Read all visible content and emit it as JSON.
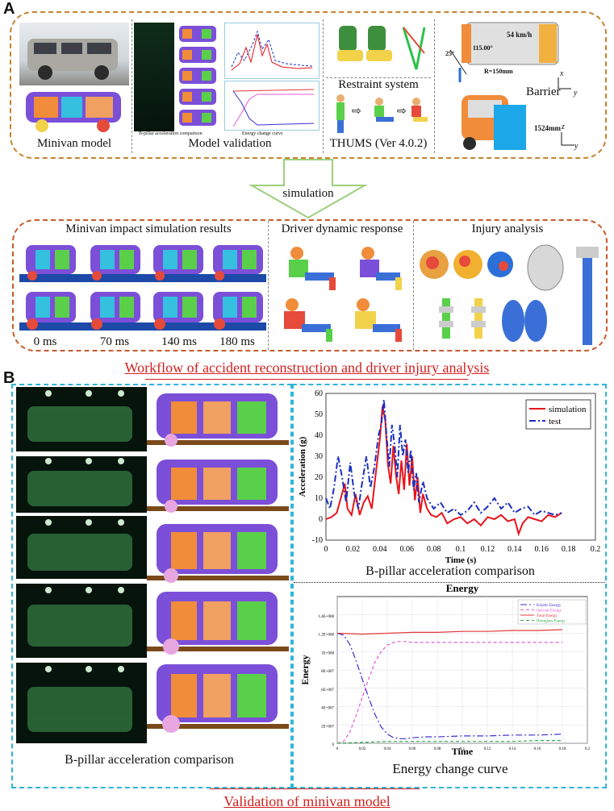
{
  "panelA": {
    "letter": "A",
    "minivan_caption": "Minivan model",
    "validation_caption": "Model validation",
    "thumb_bpillar": "B-pillar acceleration comparison",
    "thumb_energy": "Energy change curve",
    "restraint_caption": "Restraint system",
    "thums_caption": "THUMS (Ver 4.0.2)",
    "speed_label": "54 km/h",
    "angle_label": "25°",
    "angle2_label": "115.00°",
    "radius_label": "R=150mm",
    "barrier_label": "Barrier",
    "height_label": "1524mm",
    "axis_x": "x",
    "axis_y": "y",
    "axis_z": "z",
    "arrow_label": "simulation",
    "results_caption": "Minivan  impact simulation results",
    "driver_caption": "Driver dynamic response",
    "injury_caption": "Injury analysis",
    "times": [
      "0 ms",
      "70 ms",
      "140 ms",
      "180 ms"
    ],
    "workflow_caption": "Workflow of accident reconstruction and driver injury analysis"
  },
  "panelB": {
    "letter": "B",
    "left_caption": "B-pillar acceleration comparison",
    "right_top_caption": "B-pillar acceleration comparison",
    "energy_caption": "Energy change curve",
    "validation_caption": "Validation of minivan model"
  },
  "chart_data": [
    {
      "type": "line",
      "title": "",
      "xlabel": "Time (s)",
      "ylabel": "Acceleration (g)",
      "xlim": [
        0,
        0.2
      ],
      "ylim": [
        -10,
        60
      ],
      "xticks": [
        "0",
        "0.02",
        "0.04",
        "0.06",
        "0.08",
        "0.1",
        "0.12",
        "0.14",
        "0.16",
        "0.18",
        "0.2"
      ],
      "yticks": [
        "-10",
        "0",
        "10",
        "20",
        "30",
        "40",
        "50",
        "60"
      ],
      "legend": "top-right",
      "series": [
        {
          "name": "simulation",
          "color": "#e8141b",
          "dash": "solid",
          "x": [
            0,
            0.004,
            0.008,
            0.011,
            0.014,
            0.016,
            0.019,
            0.022,
            0.025,
            0.028,
            0.031,
            0.034,
            0.037,
            0.04,
            0.042,
            0.044,
            0.046,
            0.048,
            0.05,
            0.052,
            0.054,
            0.056,
            0.058,
            0.06,
            0.062,
            0.064,
            0.066,
            0.068,
            0.07,
            0.072,
            0.075,
            0.078,
            0.082,
            0.086,
            0.09,
            0.095,
            0.1,
            0.105,
            0.11,
            0.115,
            0.12,
            0.125,
            0.13,
            0.135,
            0.14,
            0.143,
            0.146,
            0.15,
            0.155,
            0.16,
            0.165,
            0.17,
            0.175
          ],
          "y": [
            0,
            1,
            3,
            10,
            17,
            5,
            2,
            12,
            2,
            8,
            11,
            5,
            22,
            38,
            54,
            47,
            26,
            17,
            35,
            21,
            12,
            28,
            14,
            36,
            16,
            30,
            9,
            20,
            3,
            12,
            5,
            2,
            1,
            3,
            -2,
            0,
            1,
            -2,
            0,
            -3,
            1,
            0,
            2,
            -1,
            0,
            -7,
            -2,
            1,
            0,
            -1,
            2,
            1,
            3
          ]
        },
        {
          "name": "test",
          "color": "#1b2fbf",
          "dash": "dashdot",
          "x": [
            0,
            0.003,
            0.006,
            0.009,
            0.012,
            0.015,
            0.018,
            0.021,
            0.024,
            0.027,
            0.03,
            0.033,
            0.036,
            0.039,
            0.041,
            0.043,
            0.045,
            0.047,
            0.049,
            0.051,
            0.053,
            0.055,
            0.057,
            0.059,
            0.061,
            0.063,
            0.065,
            0.067,
            0.069,
            0.072,
            0.075,
            0.08,
            0.085,
            0.09,
            0.095,
            0.1,
            0.105,
            0.11,
            0.115,
            0.12,
            0.125,
            0.13,
            0.135,
            0.14,
            0.145,
            0.15,
            0.155,
            0.16,
            0.165,
            0.17,
            0.175
          ],
          "y": [
            10,
            5,
            15,
            30,
            20,
            8,
            27,
            12,
            5,
            18,
            30,
            15,
            25,
            40,
            45,
            57,
            40,
            25,
            45,
            35,
            20,
            45,
            30,
            38,
            22,
            33,
            14,
            22,
            8,
            18,
            10,
            5,
            8,
            3,
            5,
            2,
            4,
            8,
            3,
            6,
            10,
            5,
            8,
            3,
            5,
            6,
            2,
            4,
            3,
            2,
            3
          ]
        }
      ]
    },
    {
      "type": "line",
      "title": "Energy",
      "xlabel": "Time",
      "ylabel": "Energy",
      "xlim": [
        0,
        0.2
      ],
      "ylim": [
        0,
        1.6
      ],
      "yticks": [
        "0",
        "2E+007",
        "4E+007",
        "6E+007",
        "8E+007",
        "1E+008",
        "1.2E+008",
        "1.4E+008"
      ],
      "xticks": [
        "0",
        "0.02",
        "0.04",
        "0.06",
        "0.08",
        "0.1",
        "0.12",
        "0.14",
        "0.16",
        "0.18",
        "0.2"
      ],
      "legend": "top-right",
      "series": [
        {
          "name": "Kinetic Energy",
          "color": "#3b2fd0",
          "dash": "dashdot",
          "x": [
            0,
            0.005,
            0.01,
            0.015,
            0.02,
            0.025,
            0.03,
            0.035,
            0.04,
            0.045,
            0.05,
            0.055,
            0.06,
            0.07,
            0.08,
            0.1,
            0.12,
            0.14,
            0.16,
            0.18
          ],
          "y": [
            1.2,
            1.18,
            1.08,
            0.9,
            0.7,
            0.5,
            0.32,
            0.18,
            0.1,
            0.06,
            0.05,
            0.05,
            0.06,
            0.07,
            0.07,
            0.08,
            0.08,
            0.09,
            0.09,
            0.1
          ]
        },
        {
          "name": "Internal Energy",
          "color": "#e25bd6",
          "dash": "dashed",
          "x": [
            0,
            0.005,
            0.01,
            0.015,
            0.02,
            0.025,
            0.03,
            0.035,
            0.04,
            0.045,
            0.05,
            0.055,
            0.06,
            0.07,
            0.08,
            0.1,
            0.12,
            0.14,
            0.16,
            0.18
          ],
          "y": [
            0,
            0.02,
            0.12,
            0.3,
            0.5,
            0.7,
            0.88,
            1.0,
            1.07,
            1.1,
            1.11,
            1.11,
            1.1,
            1.1,
            1.1,
            1.1,
            1.1,
            1.1,
            1.1,
            1.1
          ]
        },
        {
          "name": "Total Energy",
          "color": "#e33a3a",
          "dash": "solid",
          "x": [
            0,
            0.02,
            0.04,
            0.06,
            0.08,
            0.1,
            0.12,
            0.14,
            0.16,
            0.18
          ],
          "y": [
            1.2,
            1.19,
            1.2,
            1.21,
            1.21,
            1.22,
            1.22,
            1.23,
            1.23,
            1.24
          ]
        },
        {
          "name": "Hourglass Energy",
          "color": "#2fa84a",
          "dash": "dashed",
          "x": [
            0,
            0.02,
            0.04,
            0.06,
            0.08,
            0.1,
            0.12,
            0.14,
            0.16,
            0.18
          ],
          "y": [
            0,
            0.01,
            0.02,
            0.02,
            0.02,
            0.02,
            0.02,
            0.02,
            0.03,
            0.03
          ]
        }
      ]
    }
  ]
}
